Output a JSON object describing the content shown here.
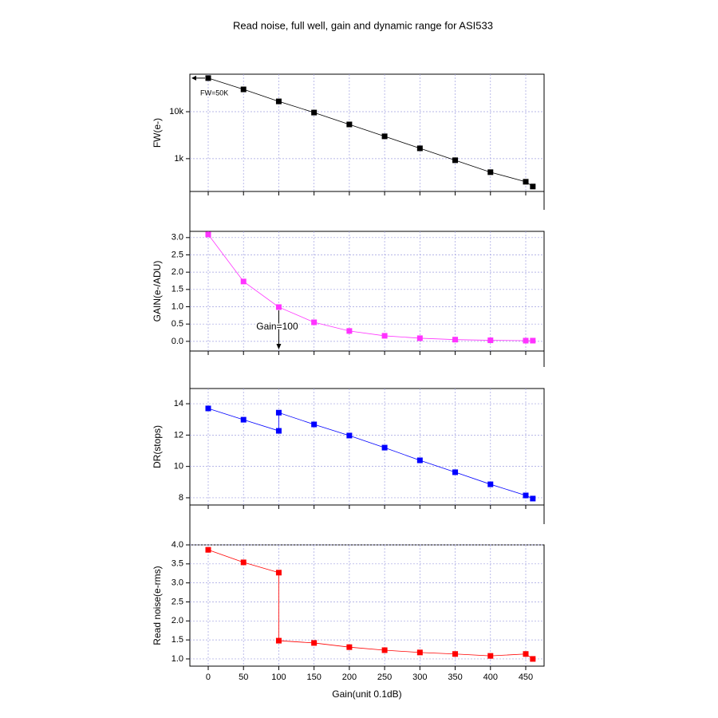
{
  "title": "Read noise, full well, gain and dynamic range for ASI533",
  "chart_data": [
    {
      "type": "line",
      "ylabel": "FW(e-)",
      "log_y": true,
      "color": "#000000",
      "x": [
        0,
        50,
        100,
        150,
        200,
        250,
        300,
        350,
        400,
        450,
        460
      ],
      "values": [
        52000,
        29900,
        16600,
        9600,
        5360,
        2990,
        1660,
        925,
        515,
        322,
        255
      ],
      "xlim": [
        -26,
        476
      ],
      "xticks": [
        0,
        50,
        100,
        150,
        200,
        250,
        300,
        350,
        400,
        450
      ],
      "ylim": [
        200,
        63000
      ],
      "yticks": [
        {
          "value": 1000,
          "label": "1k"
        },
        {
          "value": 10000,
          "label": "10k"
        }
      ],
      "grid": true,
      "annotation": "FW=50K"
    },
    {
      "type": "line",
      "ylabel": "GAIN(e-/ADU)",
      "color": "#ff33ff",
      "x": [
        0,
        50,
        100,
        150,
        200,
        250,
        300,
        350,
        400,
        450,
        460
      ],
      "values": [
        3.09,
        1.73,
        0.99,
        0.55,
        0.3,
        0.16,
        0.09,
        0.05,
        0.03,
        0.02,
        0.02
      ],
      "xlim": [
        -26,
        476
      ],
      "xticks": [
        0,
        50,
        100,
        150,
        200,
        250,
        300,
        350,
        400,
        450
      ],
      "ylim": [
        -0.28,
        3.18
      ],
      "yticks": [
        {
          "value": 0,
          "label": "0.0"
        },
        0.5,
        {
          "value": 1,
          "label": "1.0"
        },
        1.5,
        {
          "value": 2,
          "label": "2.0"
        },
        2.5,
        {
          "value": 3,
          "label": "3.0"
        }
      ],
      "grid": true,
      "annotation": "Gain=100"
    },
    {
      "type": "line",
      "ylabel": "DR(stops)",
      "color": "#0000ff",
      "x": [
        0,
        50,
        100,
        100,
        150,
        200,
        250,
        300,
        350,
        400,
        450,
        460
      ],
      "values": [
        13.7,
        12.98,
        12.27,
        13.43,
        12.68,
        11.97,
        11.2,
        10.39,
        9.63,
        8.86,
        8.15,
        7.95
      ],
      "xlim": [
        -26,
        476
      ],
      "xticks": [
        0,
        50,
        100,
        150,
        200,
        250,
        300,
        350,
        400,
        450
      ],
      "ylim": [
        7.54,
        14.97
      ],
      "yticks": [
        8,
        10,
        12,
        14
      ],
      "grid": true
    },
    {
      "type": "line",
      "ylabel": "Read noise(e-rms)",
      "xlabel": "Gain(unit 0.1dB)",
      "color": "#ff0000",
      "x": [
        0,
        50,
        100,
        100,
        150,
        200,
        250,
        300,
        350,
        400,
        450,
        460
      ],
      "values": [
        3.87,
        3.54,
        3.27,
        1.48,
        1.42,
        1.31,
        1.23,
        1.17,
        1.13,
        1.08,
        1.13,
        1.0
      ],
      "xlim": [
        -26,
        476
      ],
      "xticks": [
        0,
        50,
        100,
        150,
        200,
        250,
        300,
        350,
        400,
        450
      ],
      "ylim": [
        0.81,
        4.0
      ],
      "yticks": [
        {
          "value": 1,
          "label": "1.0"
        },
        1.5,
        {
          "value": 2,
          "label": "2.0"
        },
        2.5,
        {
          "value": 3,
          "label": "3.0"
        },
        3.5,
        {
          "value": 4,
          "label": "4.0"
        }
      ],
      "grid": true
    }
  ]
}
